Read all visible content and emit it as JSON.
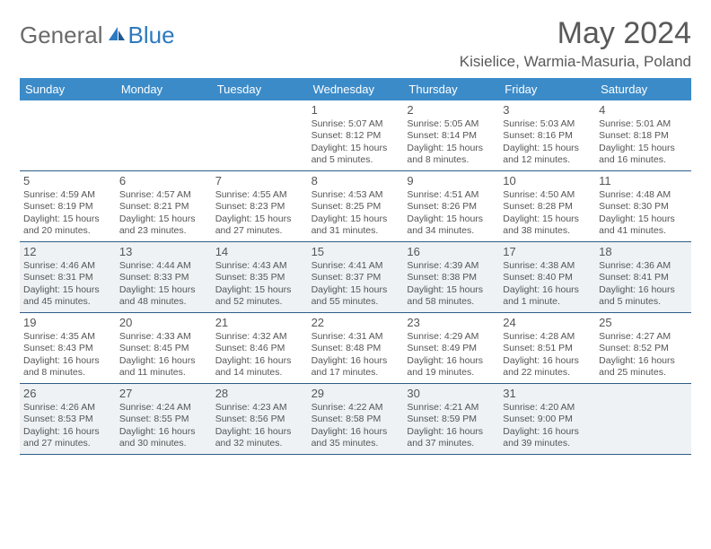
{
  "brand": {
    "part1": "General",
    "part2": "Blue"
  },
  "title": "May 2024",
  "location": "Kisielice, Warmia-Masuria, Poland",
  "colors": {
    "header_bg": "#3b8bc9",
    "header_text": "#ffffff",
    "rule": "#2f5d88",
    "alt_row": "#eef2f5",
    "text": "#555555",
    "brand_gray": "#6a6a6a",
    "brand_blue": "#2c7abf"
  },
  "day_headers": [
    "Sunday",
    "Monday",
    "Tuesday",
    "Wednesday",
    "Thursday",
    "Friday",
    "Saturday"
  ],
  "weeks": [
    [
      null,
      null,
      null,
      {
        "n": "1",
        "sr": "5:07 AM",
        "ss": "8:12 PM",
        "dl": "15 hours and 5 minutes."
      },
      {
        "n": "2",
        "sr": "5:05 AM",
        "ss": "8:14 PM",
        "dl": "15 hours and 8 minutes."
      },
      {
        "n": "3",
        "sr": "5:03 AM",
        "ss": "8:16 PM",
        "dl": "15 hours and 12 minutes."
      },
      {
        "n": "4",
        "sr": "5:01 AM",
        "ss": "8:18 PM",
        "dl": "15 hours and 16 minutes."
      }
    ],
    [
      {
        "n": "5",
        "sr": "4:59 AM",
        "ss": "8:19 PM",
        "dl": "15 hours and 20 minutes."
      },
      {
        "n": "6",
        "sr": "4:57 AM",
        "ss": "8:21 PM",
        "dl": "15 hours and 23 minutes."
      },
      {
        "n": "7",
        "sr": "4:55 AM",
        "ss": "8:23 PM",
        "dl": "15 hours and 27 minutes."
      },
      {
        "n": "8",
        "sr": "4:53 AM",
        "ss": "8:25 PM",
        "dl": "15 hours and 31 minutes."
      },
      {
        "n": "9",
        "sr": "4:51 AM",
        "ss": "8:26 PM",
        "dl": "15 hours and 34 minutes."
      },
      {
        "n": "10",
        "sr": "4:50 AM",
        "ss": "8:28 PM",
        "dl": "15 hours and 38 minutes."
      },
      {
        "n": "11",
        "sr": "4:48 AM",
        "ss": "8:30 PM",
        "dl": "15 hours and 41 minutes."
      }
    ],
    [
      {
        "n": "12",
        "sr": "4:46 AM",
        "ss": "8:31 PM",
        "dl": "15 hours and 45 minutes."
      },
      {
        "n": "13",
        "sr": "4:44 AM",
        "ss": "8:33 PM",
        "dl": "15 hours and 48 minutes."
      },
      {
        "n": "14",
        "sr": "4:43 AM",
        "ss": "8:35 PM",
        "dl": "15 hours and 52 minutes."
      },
      {
        "n": "15",
        "sr": "4:41 AM",
        "ss": "8:37 PM",
        "dl": "15 hours and 55 minutes."
      },
      {
        "n": "16",
        "sr": "4:39 AM",
        "ss": "8:38 PM",
        "dl": "15 hours and 58 minutes."
      },
      {
        "n": "17",
        "sr": "4:38 AM",
        "ss": "8:40 PM",
        "dl": "16 hours and 1 minute."
      },
      {
        "n": "18",
        "sr": "4:36 AM",
        "ss": "8:41 PM",
        "dl": "16 hours and 5 minutes."
      }
    ],
    [
      {
        "n": "19",
        "sr": "4:35 AM",
        "ss": "8:43 PM",
        "dl": "16 hours and 8 minutes."
      },
      {
        "n": "20",
        "sr": "4:33 AM",
        "ss": "8:45 PM",
        "dl": "16 hours and 11 minutes."
      },
      {
        "n": "21",
        "sr": "4:32 AM",
        "ss": "8:46 PM",
        "dl": "16 hours and 14 minutes."
      },
      {
        "n": "22",
        "sr": "4:31 AM",
        "ss": "8:48 PM",
        "dl": "16 hours and 17 minutes."
      },
      {
        "n": "23",
        "sr": "4:29 AM",
        "ss": "8:49 PM",
        "dl": "16 hours and 19 minutes."
      },
      {
        "n": "24",
        "sr": "4:28 AM",
        "ss": "8:51 PM",
        "dl": "16 hours and 22 minutes."
      },
      {
        "n": "25",
        "sr": "4:27 AM",
        "ss": "8:52 PM",
        "dl": "16 hours and 25 minutes."
      }
    ],
    [
      {
        "n": "26",
        "sr": "4:26 AM",
        "ss": "8:53 PM",
        "dl": "16 hours and 27 minutes."
      },
      {
        "n": "27",
        "sr": "4:24 AM",
        "ss": "8:55 PM",
        "dl": "16 hours and 30 minutes."
      },
      {
        "n": "28",
        "sr": "4:23 AM",
        "ss": "8:56 PM",
        "dl": "16 hours and 32 minutes."
      },
      {
        "n": "29",
        "sr": "4:22 AM",
        "ss": "8:58 PM",
        "dl": "16 hours and 35 minutes."
      },
      {
        "n": "30",
        "sr": "4:21 AM",
        "ss": "8:59 PM",
        "dl": "16 hours and 37 minutes."
      },
      {
        "n": "31",
        "sr": "4:20 AM",
        "ss": "9:00 PM",
        "dl": "16 hours and 39 minutes."
      },
      null
    ]
  ],
  "labels": {
    "sunrise": "Sunrise:",
    "sunset": "Sunset:",
    "daylight": "Daylight:"
  }
}
